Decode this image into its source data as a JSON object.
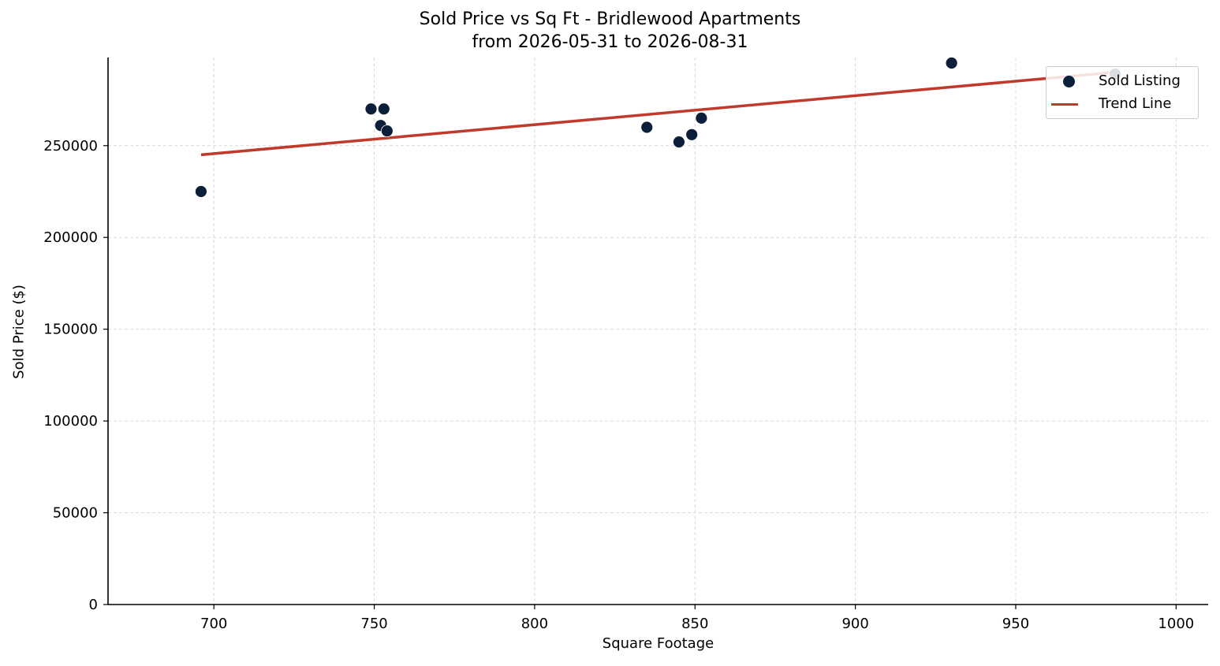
{
  "chart_data": {
    "type": "scatter",
    "title": "Sold Price vs Sq Ft - Bridlewood Apartments",
    "subtitle": "from 2026-05-31 to 2026-08-31",
    "xlabel": "Square Footage",
    "ylabel": "Sold Price ($)",
    "xlim": [
      667,
      1010
    ],
    "ylim": [
      0,
      298000
    ],
    "x_ticks": [
      700,
      750,
      800,
      850,
      900,
      950,
      1000
    ],
    "y_ticks": [
      0,
      50000,
      100000,
      150000,
      200000,
      250000
    ],
    "grid": true,
    "legend_position": "top-right",
    "series": [
      {
        "name": "Sold Listing",
        "kind": "scatter",
        "color": "#0b1f3a",
        "points": [
          {
            "x": 696,
            "y": 225000
          },
          {
            "x": 749,
            "y": 270000
          },
          {
            "x": 752,
            "y": 261000
          },
          {
            "x": 753,
            "y": 270000
          },
          {
            "x": 754,
            "y": 258000
          },
          {
            "x": 835,
            "y": 260000
          },
          {
            "x": 845,
            "y": 252000
          },
          {
            "x": 849,
            "y": 256000
          },
          {
            "x": 852,
            "y": 265000
          },
          {
            "x": 930,
            "y": 295000
          },
          {
            "x": 981,
            "y": 289000
          }
        ]
      },
      {
        "name": "Trend Line",
        "kind": "line",
        "color": "#c0392b",
        "points": [
          {
            "x": 696,
            "y": 245000
          },
          {
            "x": 981,
            "y": 290000
          }
        ]
      }
    ]
  },
  "colors": {
    "grid": "#d9d9d9",
    "axis": "#000000"
  }
}
